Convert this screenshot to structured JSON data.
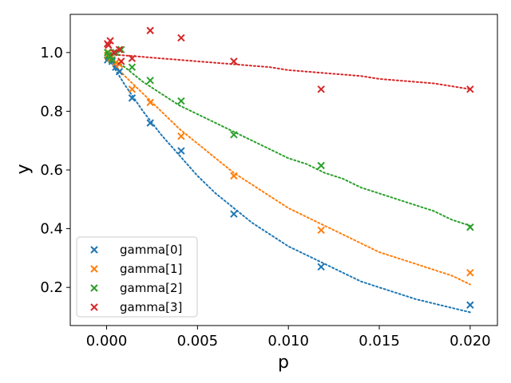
{
  "chart_data": {
    "type": "scatter",
    "title": "",
    "xlabel": "p",
    "ylabel": "y",
    "xlim": [
      -0.002,
      0.0215
    ],
    "ylim": [
      0.07,
      1.13
    ],
    "xticks": [
      0.0,
      0.005,
      0.01,
      0.015,
      0.02
    ],
    "xtick_labels": [
      "0.000",
      "0.005",
      "0.010",
      "0.015",
      "0.020"
    ],
    "yticks": [
      0.2,
      0.4,
      0.6,
      0.8,
      1.0
    ],
    "ytick_labels": [
      "0.2",
      "0.4",
      "0.6",
      "0.8",
      "1.0"
    ],
    "legend_position": "lower-left",
    "fit_x": [
      0,
      0.001,
      0.002,
      0.003,
      0.004,
      0.005,
      0.006,
      0.007,
      0.008,
      0.009,
      0.01,
      0.011,
      0.012,
      0.013,
      0.014,
      0.015,
      0.016,
      0.017,
      0.018,
      0.019,
      0.02
    ],
    "series": [
      {
        "name": "gamma[0]",
        "color": "#1f77b4",
        "x": [
          5e-05,
          0.0001,
          0.0002,
          0.0003,
          0.0005,
          0.0007,
          0.0014,
          0.0024,
          0.0041,
          0.007,
          0.0118,
          0.02
        ],
        "y": [
          0.975,
          0.985,
          0.99,
          0.97,
          0.95,
          0.935,
          0.845,
          0.76,
          0.665,
          0.45,
          0.27,
          0.14
        ],
        "fit_y": [
          0.99,
          0.89,
          0.8,
          0.72,
          0.65,
          0.58,
          0.52,
          0.47,
          0.42,
          0.38,
          0.34,
          0.31,
          0.28,
          0.25,
          0.22,
          0.2,
          0.18,
          0.16,
          0.145,
          0.13,
          0.115
        ]
      },
      {
        "name": "gamma[1]",
        "color": "#ff7f0e",
        "x": [
          5e-05,
          0.0001,
          0.0002,
          0.0003,
          0.0005,
          0.0007,
          0.0014,
          0.0024,
          0.0041,
          0.007,
          0.0118,
          0.02
        ],
        "y": [
          0.99,
          1.0,
          0.98,
          0.975,
          0.965,
          0.96,
          0.875,
          0.83,
          0.715,
          0.58,
          0.395,
          0.25
        ],
        "fit_y": [
          0.99,
          0.92,
          0.86,
          0.8,
          0.74,
          0.69,
          0.64,
          0.59,
          0.55,
          0.51,
          0.47,
          0.44,
          0.41,
          0.38,
          0.35,
          0.32,
          0.3,
          0.28,
          0.26,
          0.24,
          0.21
        ]
      },
      {
        "name": "gamma[2]",
        "color": "#2ca02c",
        "x": [
          5e-05,
          0.0001,
          0.0002,
          0.0003,
          0.0005,
          0.0008,
          0.0014,
          0.0024,
          0.0041,
          0.007,
          0.0118,
          0.02
        ],
        "y": [
          1.0,
          0.99,
          0.985,
          0.975,
          1.0,
          1.01,
          0.95,
          0.905,
          0.835,
          0.72,
          0.615,
          0.405
        ],
        "fit_y": [
          0.99,
          0.95,
          0.9,
          0.86,
          0.82,
          0.79,
          0.76,
          0.73,
          0.7,
          0.67,
          0.64,
          0.62,
          0.59,
          0.57,
          0.54,
          0.52,
          0.5,
          0.48,
          0.46,
          0.43,
          0.41
        ]
      },
      {
        "name": "gamma[3]",
        "color": "#d62728",
        "x": [
          5e-05,
          0.0001,
          0.0002,
          0.0004,
          0.0007,
          0.0008,
          0.0014,
          0.0024,
          0.0041,
          0.007,
          0.0118,
          0.02
        ],
        "y": [
          1.03,
          1.025,
          1.04,
          1.0,
          1.01,
          0.97,
          0.98,
          1.075,
          1.05,
          0.97,
          0.875,
          0.875
        ],
        "fit_y": [
          0.995,
          0.99,
          0.985,
          0.98,
          0.975,
          0.97,
          0.965,
          0.96,
          0.955,
          0.95,
          0.94,
          0.935,
          0.93,
          0.925,
          0.92,
          0.91,
          0.905,
          0.9,
          0.895,
          0.885,
          0.875
        ]
      }
    ]
  }
}
